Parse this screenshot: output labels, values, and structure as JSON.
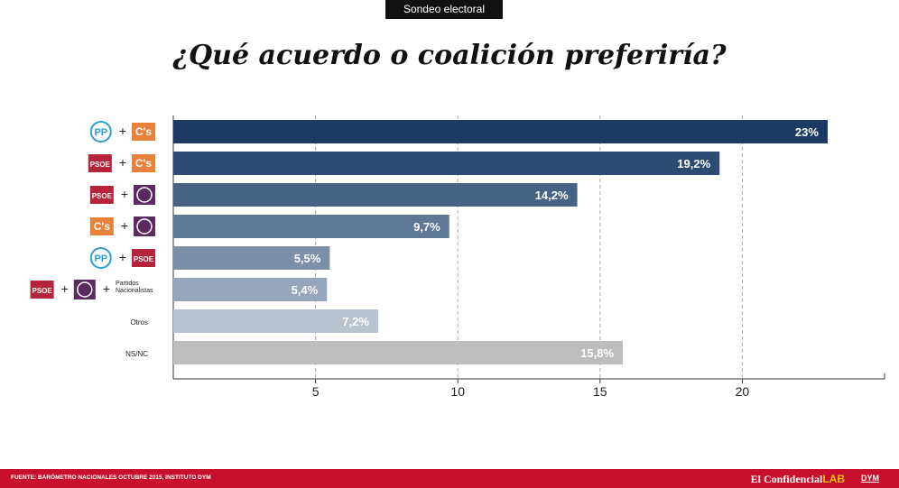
{
  "badge": "Sondeo electoral",
  "chart_data": {
    "type": "barh",
    "title": "¿Qué acuerdo o coalición preferiría?",
    "categories": [
      [
        {
          "text": "PP",
          "color": "#2a9fd8"
        },
        {
          "text": "+"
        },
        {
          "text": "C's",
          "color": "#e8823a"
        }
      ],
      [
        {
          "text": "PSOE",
          "color": "#b5243a"
        },
        {
          "text": "+"
        },
        {
          "text": "C's",
          "color": "#e8823a"
        }
      ],
      [
        {
          "text": "PSOE",
          "color": "#b5243a"
        },
        {
          "text": "+"
        },
        {
          "text": null,
          "color": "#5b2a5e"
        }
      ],
      [
        {
          "text": "C's",
          "color": "#e8823a"
        },
        {
          "text": "+"
        },
        {
          "text": null,
          "color": "#5b2a5e"
        }
      ],
      [
        {
          "text": "PP",
          "color": "#2a9fd8"
        },
        {
          "text": "+"
        },
        {
          "text": "PSOE",
          "color": "#b5243a"
        }
      ],
      [
        {
          "text": "PSOE",
          "color": "#b5243a"
        },
        {
          "text": "+"
        },
        {
          "text": null,
          "color": "#5b2a5e"
        },
        {
          "text": "+"
        },
        {
          "text": "Partidos Nacionalistas"
        }
      ],
      [
        {
          "text": "Otros"
        }
      ],
      [
        {
          "text": "NS/NC"
        }
      ]
    ],
    "values": [
      23,
      19.2,
      14.2,
      9.7,
      5.5,
      5.4,
      7.2,
      15.8
    ],
    "value_labels": [
      "23%",
      "19,2%",
      "14,2%",
      "9,7%",
      "5,5%",
      "5,4%",
      "7,2%",
      "15,8%"
    ],
    "colors": [
      "#1c3a63",
      "#2d4b72",
      "#466384",
      "#5e7896",
      "#7c8fa9",
      "#95a5bb",
      "#b7c3d1",
      "#bdbdbd"
    ],
    "xlim": [
      0,
      25
    ],
    "xticks": [
      5,
      10,
      15,
      20
    ],
    "grid": true
  },
  "footer": {
    "source": "FUENTE: BARÓMETRO NACIONALES OCTUBRE 2015, INSTITUTO DYM",
    "brand": "El Confidencial",
    "brand_suffix": "LAB",
    "partner": "DYM"
  }
}
